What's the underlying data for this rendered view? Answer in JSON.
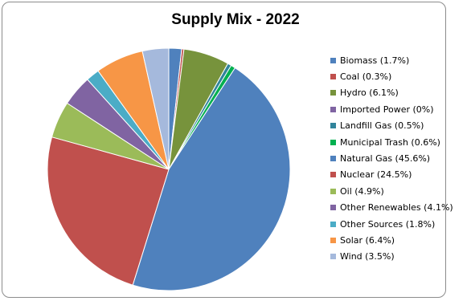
{
  "chart_data": {
    "type": "pie",
    "title": "Supply Mix - 2022",
    "legend_position": "right",
    "slices": [
      {
        "label": "Biomass (1.7%)",
        "name": "Biomass",
        "value": 1.7,
        "color": "#4f81bd"
      },
      {
        "label": "Coal (0.3%)",
        "name": "Coal",
        "value": 0.3,
        "color": "#c0504d"
      },
      {
        "label": "Hydro (6.1%)",
        "name": "Hydro",
        "value": 6.1,
        "color": "#77933c"
      },
      {
        "label": "Imported Power (0%)",
        "name": "Imported Power",
        "value": 0,
        "color": "#8064a2"
      },
      {
        "label": "Landfill Gas (0.5%)",
        "name": "Landfill Gas",
        "value": 0.5,
        "color": "#31849b"
      },
      {
        "label": "Municipal Trash (0.6%)",
        "name": "Municipal Trash",
        "value": 0.6,
        "color": "#00b050"
      },
      {
        "label": "Natural Gas (45.6%)",
        "name": "Natural Gas",
        "value": 45.6,
        "color": "#4f81bd"
      },
      {
        "label": "Nuclear (24.5%)",
        "name": "Nuclear",
        "value": 24.5,
        "color": "#c0504d"
      },
      {
        "label": "Oil (4.9%)",
        "name": "Oil",
        "value": 4.9,
        "color": "#9bbb59"
      },
      {
        "label": "Other Renewables (4.1%)",
        "name": "Other Renewables",
        "value": 4.1,
        "color": "#8064a2"
      },
      {
        "label": "Other Sources (1.8%)",
        "name": "Other Sources",
        "value": 1.8,
        "color": "#4bacc6"
      },
      {
        "label": "Solar (6.4%)",
        "name": "Solar",
        "value": 6.4,
        "color": "#f79646"
      },
      {
        "label": "Wind (3.5%)",
        "name": "Wind",
        "value": 3.5,
        "color": "#a5b9dc"
      }
    ]
  }
}
